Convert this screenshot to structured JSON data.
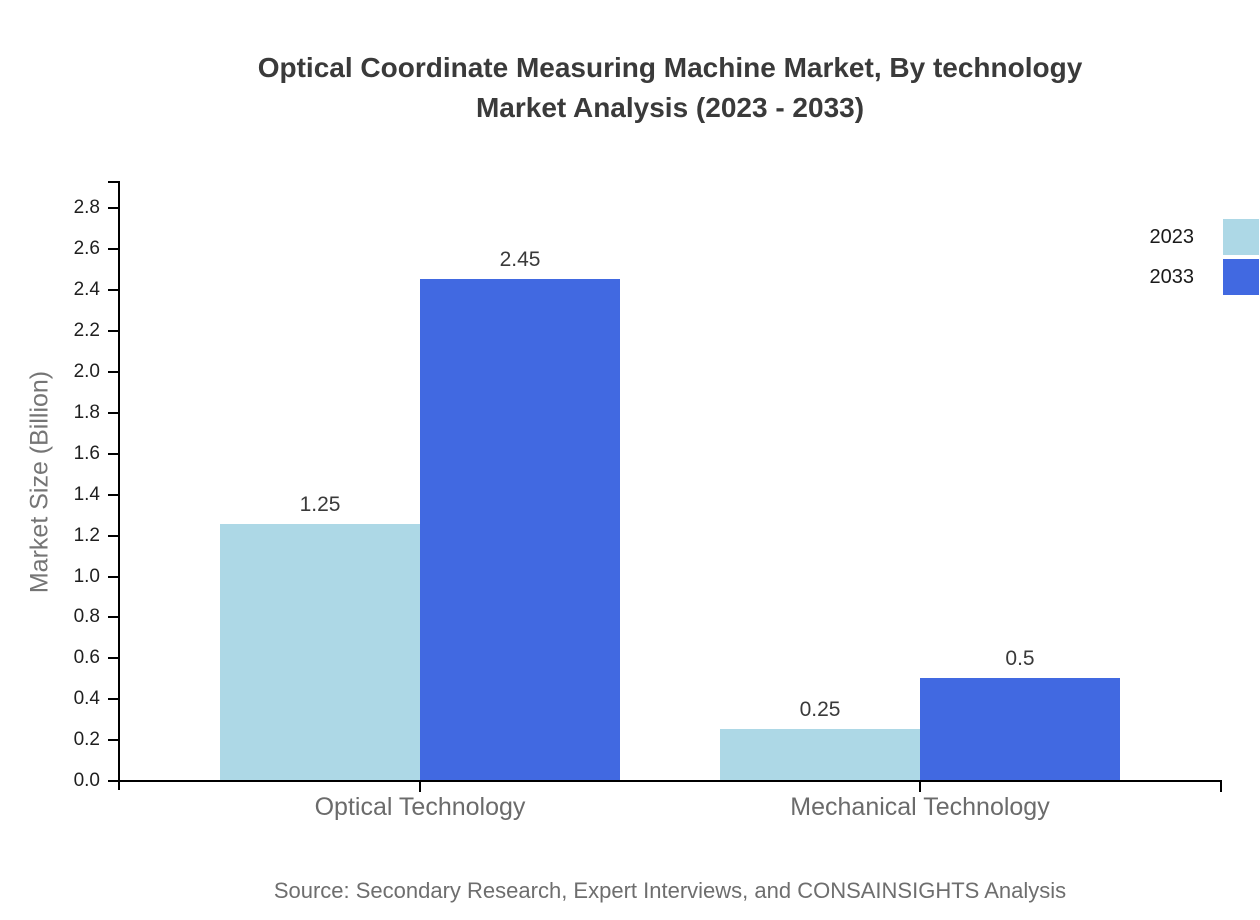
{
  "title": "Optical Coordinate Measuring Machine Market, By technology\nMarket Analysis (2023 - 2033)",
  "source": "Source: Secondary Research, Expert Interviews, and CONSAINSIGHTS Analysis",
  "chart_data": {
    "type": "bar",
    "title": "Optical Coordinate Measuring Machine Market, By technology Market Analysis (2023 - 2033)",
    "categories": [
      "Optical Technology",
      "Mechanical Technology"
    ],
    "series": [
      {
        "name": "2023",
        "color": "#ADD8E6",
        "values": [
          1.25,
          0.25
        ]
      },
      {
        "name": "2033",
        "color": "#4169E1",
        "values": [
          2.45,
          0.5
        ]
      }
    ],
    "xlabel": "",
    "ylabel": "Market Size (Billion)",
    "ylim": [
      0.0,
      2.8
    ],
    "ytick_step": 0.2,
    "grid": false,
    "legend_position": "top-right",
    "bar_value_labels": [
      [
        "1.25",
        "0.25"
      ],
      [
        "2.45",
        "0.5"
      ]
    ],
    "source_note": "Source: Secondary Research, Expert Interviews, and CONSAINSIGHTS Analysis"
  }
}
